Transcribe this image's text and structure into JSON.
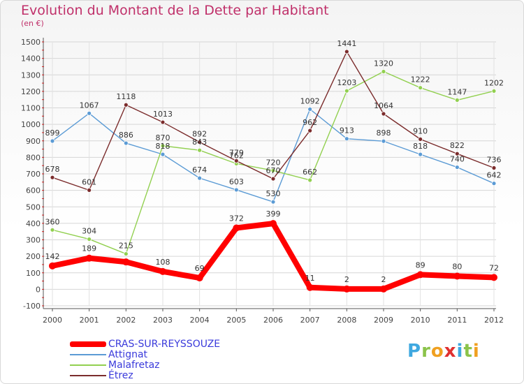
{
  "header": {
    "title": "Evolution du Montant de la Dette par Habitant",
    "subtitle": "(en €)"
  },
  "brand": {
    "letters": [
      "P",
      "r",
      "o",
      "x",
      "i",
      "t",
      "i"
    ],
    "colors": [
      "#3fa8e0",
      "#8bc34a",
      "#f0a020",
      "#e03030",
      "#3fa8e0",
      "#8bc34a",
      "#f0a020"
    ]
  },
  "chart_data": {
    "type": "line",
    "title": "Evolution du Montant de la Dette par Habitant",
    "subtitle": "(en €)",
    "xlabel": "",
    "ylabel": "",
    "categories": [
      "2000",
      "2001",
      "2002",
      "2003",
      "2004",
      "2005",
      "2006",
      "2007",
      "2008",
      "2009",
      "2010",
      "2011",
      "2012"
    ],
    "ylim": [
      -100,
      1500
    ],
    "yticks": [
      -100,
      0,
      100,
      200,
      300,
      400,
      500,
      600,
      700,
      800,
      900,
      1000,
      1100,
      1200,
      1300,
      1400,
      1500
    ],
    "grid": true,
    "legend_position": "bottom-left",
    "series": [
      {
        "name": "CRAS-SUR-REYSSOUZE",
        "color": "#ff0000",
        "values": [
          142,
          189,
          166,
          108,
          69,
          372,
          399,
          11,
          2,
          2,
          89,
          80,
          72
        ],
        "labels": [
          "142",
          "189",
          "",
          "108",
          "69",
          "372",
          "399",
          "11",
          "2",
          "2",
          "89",
          "80",
          "72"
        ]
      },
      {
        "name": "Attignat",
        "color": "#5b9bd5",
        "values": [
          899,
          1067,
          886,
          818,
          674,
          603,
          530,
          1092,
          913,
          898,
          818,
          740,
          642
        ],
        "labels": [
          "899",
          "1067",
          "886",
          "818",
          "674",
          "603",
          "530",
          "1092",
          "913",
          "898",
          "818",
          "740",
          "642"
        ]
      },
      {
        "name": "Malafretaz",
        "color": "#92d050",
        "values": [
          360,
          304,
          215,
          870,
          843,
          762,
          720,
          662,
          1203,
          1320,
          1222,
          1147,
          1202
        ],
        "labels": [
          "360",
          "304",
          "215",
          "870",
          "843",
          "762",
          "720",
          "662",
          "1203",
          "1320",
          "1222",
          "1147",
          "1202"
        ]
      },
      {
        "name": "Étrez",
        "color": "#7b2c2c",
        "values": [
          678,
          601,
          1118,
          1013,
          892,
          779,
          670,
          962,
          1441,
          1064,
          910,
          822,
          736
        ],
        "labels": [
          "678",
          "601",
          "1118",
          "1013",
          "892",
          "779",
          "670",
          "962",
          "1441",
          "1064",
          "910",
          "822",
          "736"
        ]
      }
    ]
  }
}
